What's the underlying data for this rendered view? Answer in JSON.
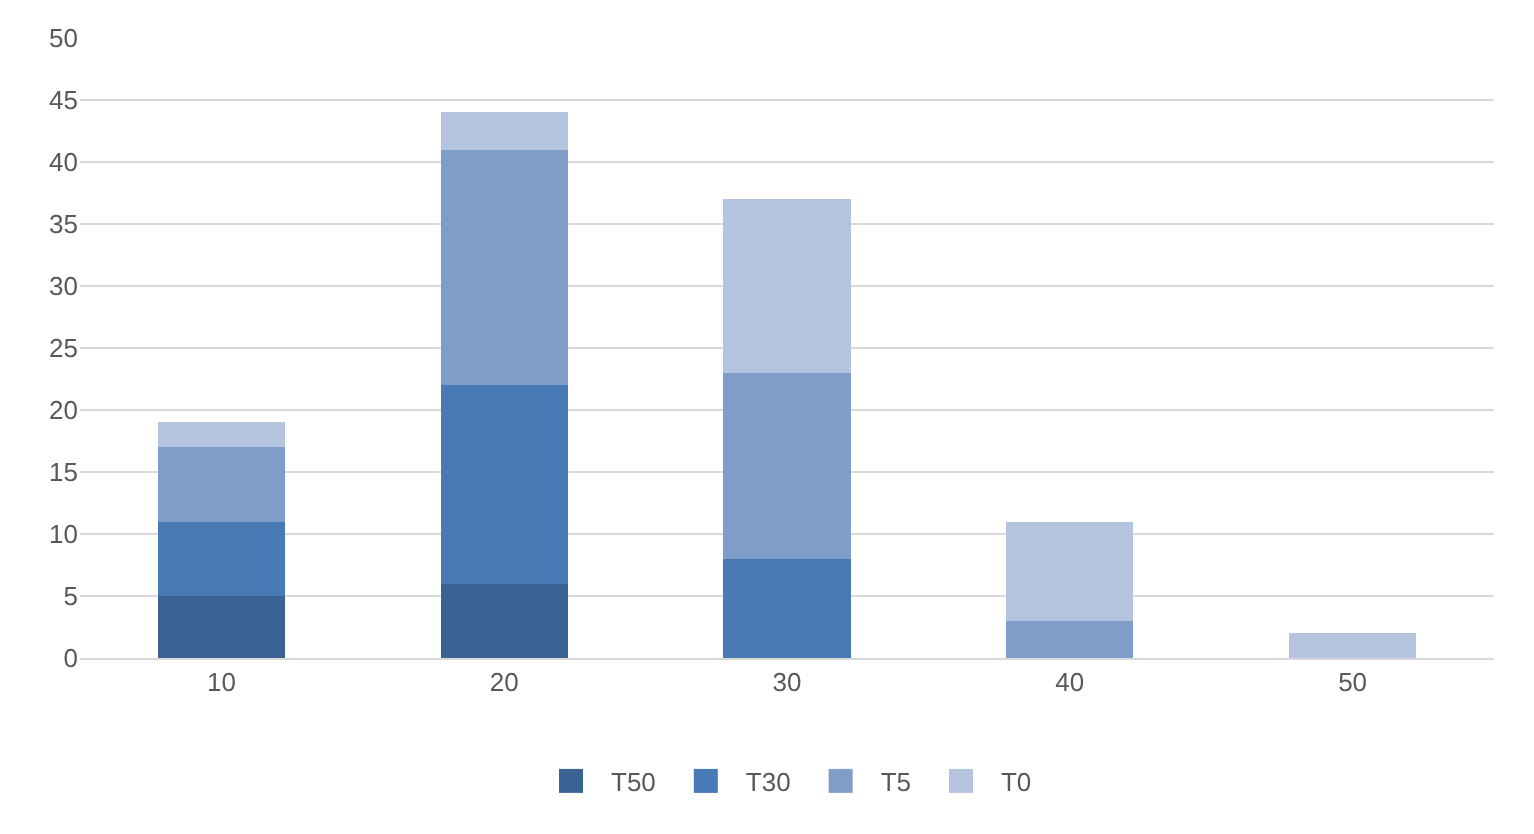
{
  "chart_data": {
    "type": "bar",
    "stacked": true,
    "categories": [
      "10",
      "20",
      "30",
      "40",
      "50"
    ],
    "series": [
      {
        "name": "T50",
        "color": "#3a6293",
        "values": [
          5,
          6,
          0,
          0,
          0
        ]
      },
      {
        "name": "T30",
        "color": "#4a7ab5",
        "values": [
          6,
          16,
          8,
          0,
          0
        ]
      },
      {
        "name": "T5",
        "color": "#7f9dc9",
        "values": [
          6,
          19,
          15,
          3,
          0
        ]
      },
      {
        "name": "T0",
        "color": "#b4c3de",
        "values": [
          2,
          3,
          14,
          8,
          2
        ]
      }
    ],
    "ylim": [
      0,
      50
    ],
    "yticks": [
      0,
      5,
      10,
      15,
      20,
      25,
      30,
      35,
      40,
      45,
      50
    ],
    "grid": "y",
    "legend": "bottom"
  }
}
